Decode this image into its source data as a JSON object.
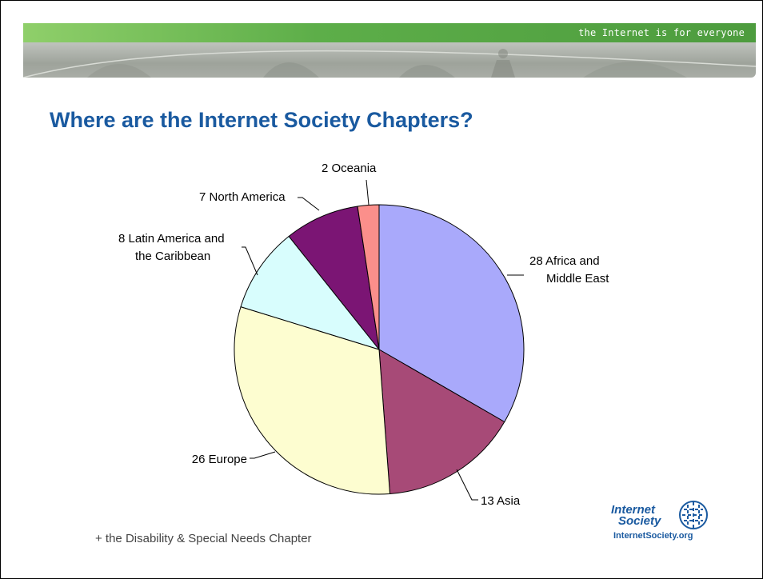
{
  "header": {
    "tagline": "the Internet is for everyone"
  },
  "slide": {
    "title": "Where are the Internet Society Chapters?",
    "note": "+ the Disability & Special Needs Chapter"
  },
  "logo": {
    "line1": "Internet",
    "line2": "Society",
    "url": "InternetSociety.org"
  },
  "colors": {
    "title": "#1a5aa0",
    "banner_green": "#5dae49"
  },
  "chart_data": {
    "type": "pie",
    "title": "",
    "start": "top, clockwise",
    "slices": [
      {
        "label": "Africa and Middle East",
        "value": 28,
        "color": "#a9a9fb",
        "label_lines": [
          "28  Africa and",
          "Middle East"
        ]
      },
      {
        "label": "Asia",
        "value": 13,
        "color": "#a74a77",
        "label_lines": [
          "13  Asia"
        ]
      },
      {
        "label": "Europe",
        "value": 26,
        "color": "#fdfdd0",
        "label_lines": [
          "26  Europe"
        ]
      },
      {
        "label": "Latin America and the Caribbean",
        "value": 8,
        "color": "#d8fdfd",
        "label_lines": [
          "8  Latin America and",
          "the Caribbean"
        ]
      },
      {
        "label": "North America",
        "value": 7,
        "color": "#7b1574",
        "label_lines": [
          "7  North America"
        ]
      },
      {
        "label": "Oceania",
        "value": 2,
        "color": "#fb8f8b",
        "label_lines": [
          "2  Oceania"
        ]
      }
    ]
  }
}
